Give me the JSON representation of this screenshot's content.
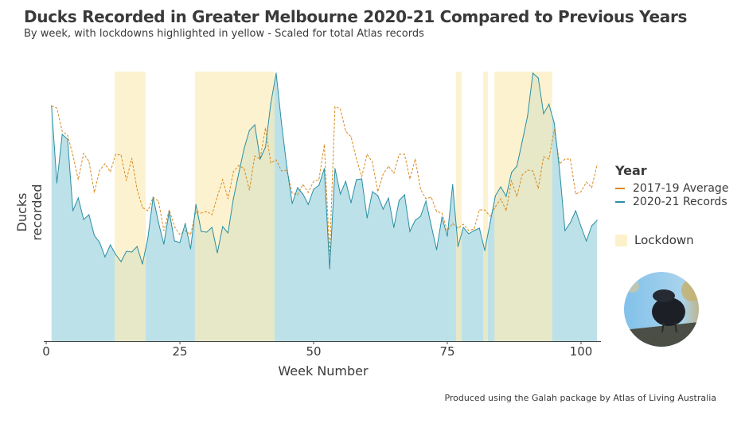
{
  "chart_data": {
    "type": "area",
    "title": "Ducks Recorded in Greater Melbourne 2020-21 Compared to Previous Years",
    "subtitle": "By week, with lockdowns highlighted in yellow - Scaled for total Atlas records",
    "xlabel": "Week Number",
    "ylabel": "Ducks recorded",
    "xlim": [
      0,
      104
    ],
    "ylim": [
      0,
      337
    ],
    "xticks": [
      0,
      25,
      50,
      75,
      100
    ],
    "xtick_labels": [
      "0",
      "25",
      "50",
      "75",
      "100"
    ],
    "grid": false,
    "legend_position": "right",
    "legend_title": "Year",
    "x": [
      1,
      2,
      3,
      4,
      5,
      6,
      7,
      8,
      9,
      10,
      11,
      12,
      13,
      14,
      15,
      16,
      17,
      18,
      19,
      20,
      21,
      22,
      23,
      24,
      25,
      26,
      27,
      28,
      29,
      30,
      31,
      32,
      33,
      34,
      35,
      36,
      37,
      38,
      39,
      40,
      41,
      42,
      43,
      44,
      45,
      46,
      47,
      48,
      49,
      50,
      51,
      52,
      53,
      54,
      55,
      56,
      57,
      58,
      59,
      60,
      61,
      62,
      63,
      64,
      65,
      66,
      67,
      68,
      69,
      70,
      71,
      72,
      73,
      74,
      75,
      76,
      77,
      78,
      79,
      80,
      81,
      82,
      83,
      84,
      85,
      86,
      87,
      88,
      89,
      90,
      91,
      92,
      93,
      94,
      95,
      96,
      97,
      98,
      99,
      100,
      101,
      102,
      103
    ],
    "series": [
      {
        "name": "2017-19 Average",
        "color": "#d98a1c",
        "style": "dashed",
        "values": [
          296,
          293,
          264,
          259,
          234,
          203,
          236,
          226,
          187,
          215,
          223,
          213,
          235,
          234,
          202,
          230,
          191,
          168,
          164,
          181,
          176,
          139,
          165,
          144,
          134,
          139,
          134,
          163,
          161,
          163,
          159,
          182,
          203,
          179,
          213,
          221,
          217,
          190,
          233,
          229,
          268,
          224,
          228,
          214,
          215,
          186,
          184,
          197,
          187,
          201,
          203,
          247,
          109,
          295,
          292,
          264,
          257,
          229,
          207,
          235,
          225,
          188,
          210,
          220,
          211,
          235,
          235,
          204,
          229,
          191,
          179,
          181,
          163,
          161,
          139,
          148,
          142,
          147,
          139,
          141,
          165,
          165,
          157,
          169,
          179,
          164,
          202,
          182,
          209,
          215,
          214,
          192,
          232,
          229,
          266,
          223,
          229,
          229,
          185,
          188,
          200,
          193,
          222
        ]
      },
      {
        "name": "2020-21 Records",
        "color": "#2a8fa3",
        "style": "solid-area",
        "values": [
          296,
          199,
          260,
          254,
          164,
          180,
          153,
          159,
          133,
          124,
          106,
          121,
          109,
          100,
          113,
          112,
          119,
          97,
          129,
          181,
          149,
          122,
          163,
          126,
          124,
          148,
          116,
          172,
          138,
          137,
          143,
          111,
          144,
          136,
          179,
          211,
          242,
          265,
          272,
          229,
          244,
          299,
          337,
          274,
          219,
          173,
          193,
          185,
          172,
          191,
          196,
          217,
          91,
          217,
          185,
          201,
          174,
          203,
          204,
          155,
          188,
          183,
          166,
          180,
          143,
          177,
          184,
          138,
          152,
          157,
          176,
          145,
          115,
          156,
          132,
          197,
          119,
          143,
          135,
          139,
          142,
          114,
          149,
          183,
          194,
          182,
          212,
          220,
          251,
          283,
          337,
          331,
          286,
          298,
          274,
          214,
          139,
          149,
          164,
          144,
          126,
          145,
          152
        ]
      }
    ],
    "lockdowns": [
      [
        12.8,
        18.6
      ],
      [
        27.8,
        42.7
      ],
      [
        76.6,
        77.7
      ],
      [
        81.7,
        82.6
      ],
      [
        83.8,
        94.6
      ]
    ],
    "lockdown_label": "Lockdown",
    "lockdown_color": "#fdf1cc"
  },
  "caption": "Produced using the Galah package by Atlas of Living Australia"
}
